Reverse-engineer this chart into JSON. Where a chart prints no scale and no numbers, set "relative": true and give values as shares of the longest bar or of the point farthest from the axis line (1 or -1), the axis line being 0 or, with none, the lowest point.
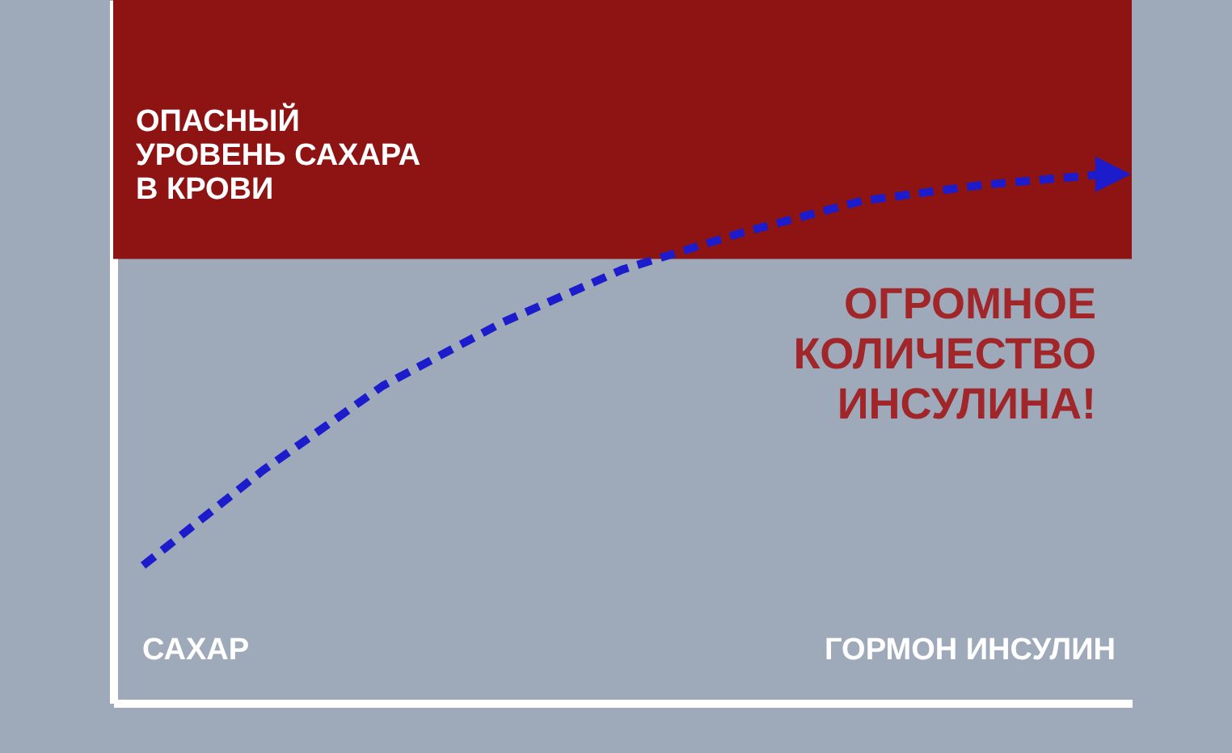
{
  "chart_data": {
    "type": "line",
    "relative": true,
    "categories": [
      null,
      null,
      null,
      null,
      null,
      null,
      null,
      null,
      null
    ],
    "series": [
      {
        "color": "#1c1ccc",
        "values": [
          0.26,
          0.44,
          0.6,
          0.72,
          0.82,
          0.89,
          0.95,
          0.98,
          1
        ]
      }
    ],
    "line_style": "dashed",
    "marker": "none",
    "bands": [
      {
        "axis": "y",
        "from": 0.84,
        "to": 1.33,
        "label": "ОПАСНЫЙ\nУРОВЕНЬ САХАРА\nВ КРОВИ",
        "color": "#8e1414"
      }
    ],
    "annotations": [
      "САХАР",
      "ГОРМОН ИНСУЛИН",
      "ОГРОМНОЕ\nКОЛИЧЕСТВО\nИНСУЛИНА!"
    ]
  }
}
